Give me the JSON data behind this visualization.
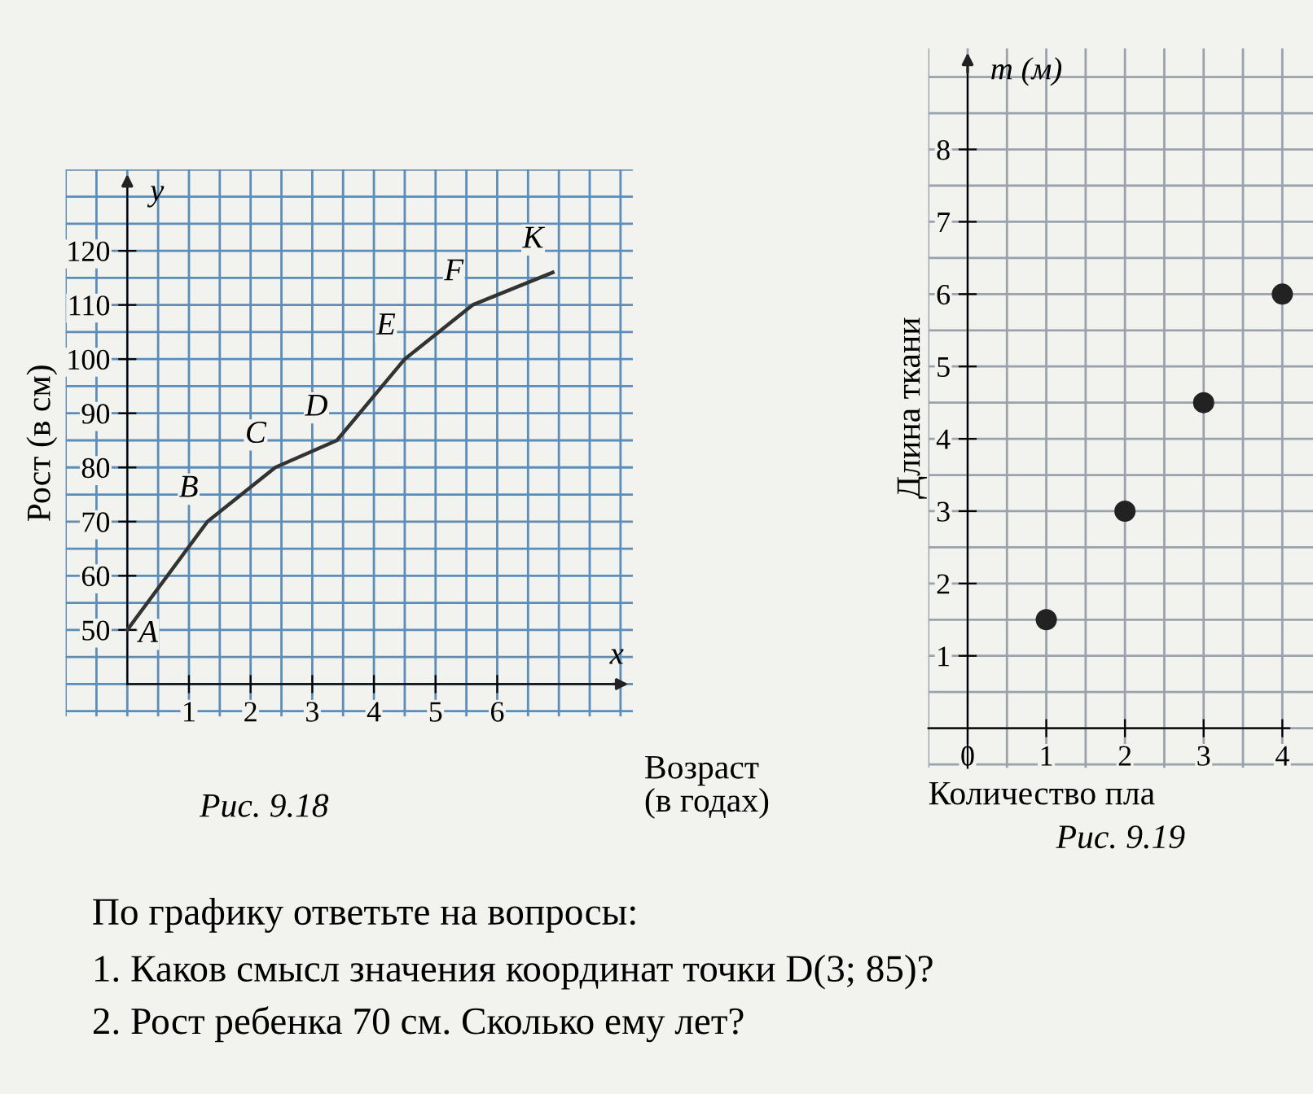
{
  "chart_data": [
    {
      "type": "line",
      "title": "Рис. 9.18",
      "xlabel": "Возраст\n(в годах)",
      "ylabel": "Рост (в см)",
      "x": [
        0,
        1.3,
        2.4,
        3.4,
        4.5,
        5.6,
        6.9
      ],
      "series": [
        {
          "color": "#333333",
          "values": [
            50,
            70,
            80,
            85,
            100,
            110,
            116
          ]
        }
      ],
      "xlim": [
        -1,
        8.2
      ],
      "ylim": [
        34,
        135
      ],
      "xticks": [
        {
          "value": 0,
          "label": null
        },
        1,
        2,
        3,
        4,
        5,
        6
      ],
      "yticks": [
        {
          "value": 40,
          "label": null
        },
        50,
        60,
        70,
        80,
        90,
        100,
        110,
        120
      ],
      "grid": true,
      "marker": "none",
      "line_style": "solid",
      "annotations": [
        "y",
        "x",
        {
          "text": "A",
          "x": 0,
          "y": 50
        },
        {
          "text": "B",
          "x": 1.3,
          "y": 70
        },
        {
          "text": "C",
          "x": 2.4,
          "y": 80
        },
        {
          "text": "D",
          "x": 3.4,
          "y": 85
        },
        {
          "text": "E",
          "x": 4.5,
          "y": 100
        },
        {
          "text": "F",
          "x": 5.6,
          "y": 110
        },
        {
          "text": "K",
          "x": 6.9,
          "y": 116
        }
      ]
    },
    {
      "type": "scatter",
      "title": "Рис. 9.19",
      "xlabel": "Количество пла",
      "ylabel": "Длина ткани",
      "x": [
        1,
        2,
        3,
        4
      ],
      "series": [
        {
          "color": "#222222",
          "values": [
            1.5,
            3,
            4.5,
            6
          ]
        }
      ],
      "xlim": [
        -0.5,
        4.39
      ],
      "ylim": [
        -0.55,
        9.4
      ],
      "xticks": [
        {
          "value": 0,
          "label": "0"
        },
        1,
        2,
        3,
        4
      ],
      "yticks": [
        {
          "value": 0,
          "label": null
        },
        1,
        2,
        3,
        4,
        5,
        6,
        7,
        8
      ],
      "grid": true,
      "marker": "circle",
      "annotations": [
        "m (м)"
      ]
    },
    {
      "type": "other",
      "title": "По графику ответьте на вопросы:",
      "annotations": [
        "1. Каков смысл значения координат точки D(3; 85)?",
        "2. Рост ребенка 70 см. Сколько ему лет?"
      ]
    }
  ]
}
